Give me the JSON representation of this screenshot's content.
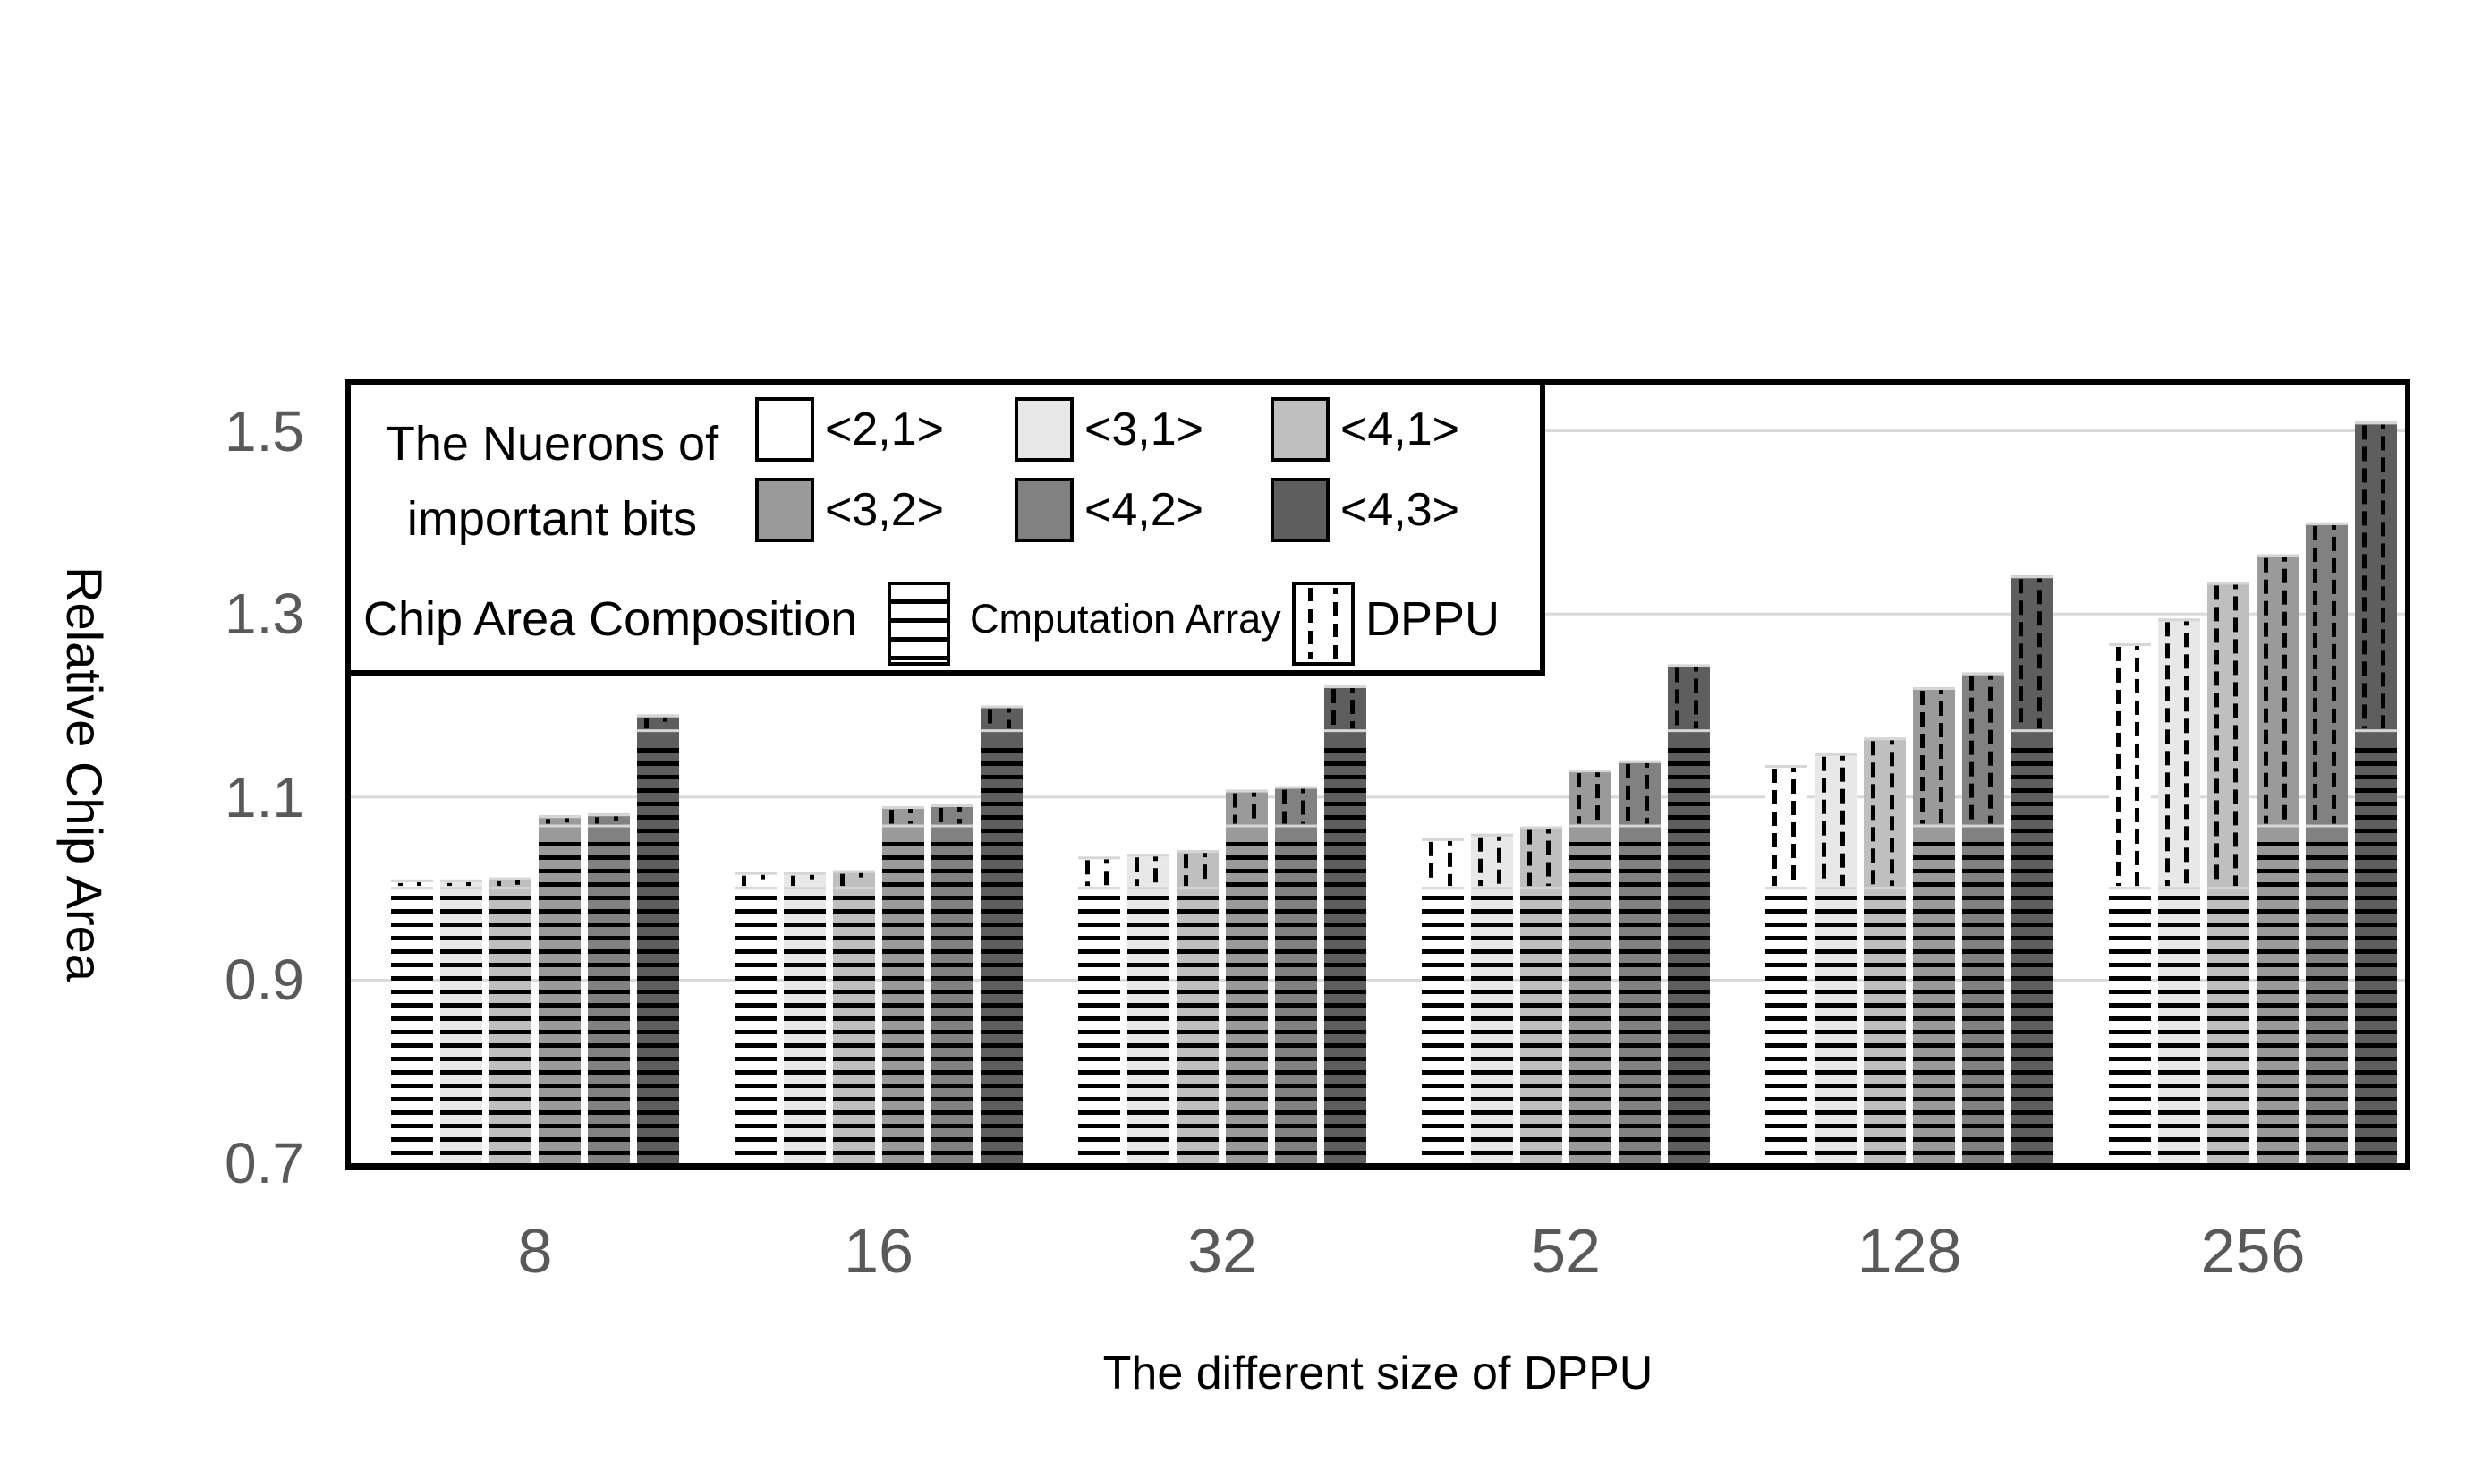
{
  "chart_data": {
    "type": "bar",
    "stacked": true,
    "xlabel": "The different size of DPPU",
    "ylabel": "Relative Chip Area",
    "categories": [
      "8",
      "16",
      "32",
      "52",
      "128",
      "256"
    ],
    "ylim": [
      0.7,
      1.55
    ],
    "yticks": [
      1.5,
      1.3,
      1.1,
      0.9,
      0.7
    ],
    "gridlines": [
      0.9,
      1.1,
      1.3,
      1.5
    ],
    "legend_position": "top-left-inside",
    "segment_names": [
      "Cmputation Array",
      "DPPU"
    ],
    "series": [
      {
        "name": "<2,1>",
        "color": "#ffffff",
        "computation_array": 1.0,
        "totals": [
          1.01,
          1.018,
          1.035,
          1.055,
          1.135,
          1.268
        ]
      },
      {
        "name": "<3,1>",
        "color": "#e8e8e8",
        "computation_array": 1.0,
        "totals": [
          1.01,
          1.018,
          1.038,
          1.06,
          1.148,
          1.295
        ]
      },
      {
        "name": "<4,1>",
        "color": "#bfbfbf",
        "computation_array": 1.0,
        "totals": [
          1.012,
          1.02,
          1.042,
          1.068,
          1.165,
          1.335
        ]
      },
      {
        "name": "<3,2>",
        "color": "#9a9a9a",
        "computation_array": 1.068,
        "totals": [
          1.08,
          1.09,
          1.108,
          1.13,
          1.22,
          1.365
        ]
      },
      {
        "name": "<4,2>",
        "color": "#818181",
        "computation_array": 1.068,
        "totals": [
          1.082,
          1.092,
          1.112,
          1.14,
          1.236,
          1.4
        ]
      },
      {
        "name": "<4,3>",
        "color": "#5e5e5e",
        "computation_array": 1.172,
        "totals": [
          1.19,
          1.2,
          1.222,
          1.245,
          1.342,
          1.51
        ]
      }
    ]
  },
  "axes": {
    "y_tick_labels": [
      "1.5",
      "1.3",
      "1.1",
      "0.9",
      "0.7"
    ],
    "x_tick_labels": [
      "8",
      "16",
      "32",
      "52",
      "128",
      "256"
    ]
  },
  "legend": {
    "neurons_title_line1": "The Nuerons of",
    "neurons_title_line2": "important bits",
    "series_labels": [
      "<2,1>",
      "<3,1>",
      "<4,1>",
      "<3,2>",
      "<4,2>",
      "<4,3>"
    ],
    "composition_title": "Chip Area Composition",
    "computation_label": "Cmputation Array",
    "dppu_label": "DPPU"
  },
  "colors": {
    "tick_label": "#595959",
    "axis_title": "#000000",
    "gridline": "#d9d9d9",
    "plot_border": "#000000",
    "pattern_line": "#000000",
    "segment_edge": "#d6d6d6"
  }
}
